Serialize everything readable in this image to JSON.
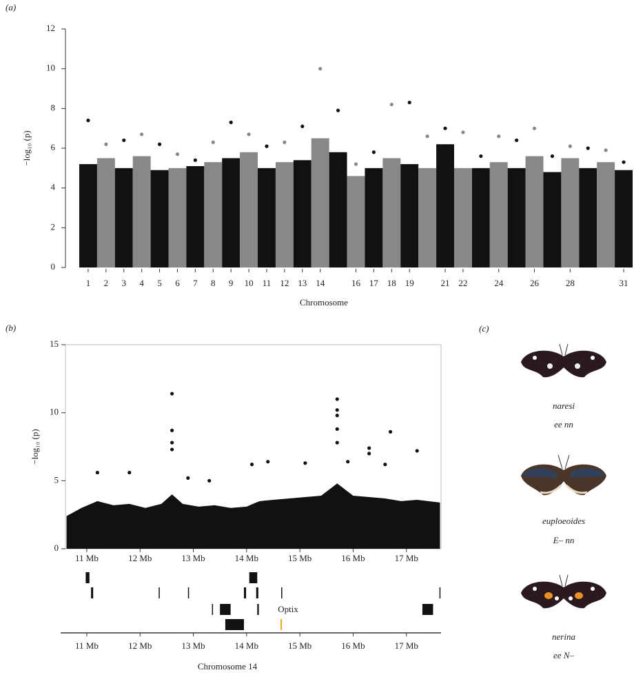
{
  "chart_data": [
    {
      "type": "manhattan",
      "panel": "(a)",
      "x_label": "Chromosome",
      "y_label": "−log₁₀ (p)",
      "categories": [
        "1",
        "2",
        "3",
        "4",
        "5",
        "6",
        "7",
        "8",
        "9",
        "10",
        "11",
        "12",
        "13",
        "14",
        null,
        "16",
        "17",
        "18",
        "19",
        null,
        "21",
        "22",
        null,
        "24",
        null,
        "26",
        null,
        "28",
        null,
        null,
        "31"
      ],
      "values": [
        5.2,
        5.5,
        5.0,
        5.6,
        4.9,
        5.0,
        5.1,
        5.3,
        5.5,
        5.8,
        5.0,
        5.3,
        5.4,
        6.5,
        5.8,
        4.6,
        5.0,
        5.5,
        5.2,
        5.0,
        6.2,
        5.0,
        5.0,
        5.3,
        5.0,
        5.6,
        4.8,
        5.5,
        5.0,
        5.3,
        4.9
      ],
      "max_values": [
        7.4,
        6.2,
        6.4,
        6.7,
        6.2,
        5.7,
        5.4,
        6.3,
        7.3,
        6.7,
        6.1,
        6.3,
        7.1,
        10.0,
        7.9,
        5.2,
        5.8,
        8.2,
        8.3,
        6.6,
        7.0,
        6.8,
        5.6,
        6.6,
        6.4,
        7.0,
        5.6,
        6.1,
        6.0,
        5.9,
        5.3
      ],
      "colors": [
        "#111111",
        "#888888"
      ],
      "ylim": [
        0,
        12
      ],
      "yticks": [
        0,
        2,
        4,
        6,
        8,
        10,
        12
      ]
    },
    {
      "type": "regional",
      "panel": "(b)",
      "x_label": "Chromosome 14",
      "y_label": "−log₁₀ (p)",
      "xlim": [
        10.6,
        17.65
      ],
      "ylim": [
        0,
        15
      ],
      "yticks": [
        0,
        5,
        10,
        15
      ],
      "xticks": [
        {
          "value": 11,
          "label": "11 Mb"
        },
        {
          "value": 12,
          "label": "12 Mb"
        },
        {
          "value": 13,
          "label": "13 Mb"
        },
        {
          "value": 14,
          "label": "14 Mb"
        },
        {
          "value": 15,
          "label": "15 Mb"
        },
        {
          "value": 16,
          "label": "16 Mb"
        },
        {
          "value": 17,
          "label": "17 Mb"
        }
      ],
      "envelope_x": [
        10.62,
        10.9,
        11.2,
        11.5,
        11.8,
        12.1,
        12.4,
        12.6,
        12.8,
        13.1,
        13.4,
        13.7,
        14.0,
        14.18,
        14.25,
        14.5,
        14.8,
        15.1,
        15.4,
        15.7,
        16.0,
        16.3,
        16.6,
        16.9,
        17.2,
        17.63
      ],
      "envelope_y": [
        2.4,
        3.0,
        3.5,
        3.2,
        3.3,
        3.0,
        3.3,
        4.0,
        3.3,
        3.1,
        3.2,
        3.0,
        3.1,
        3.4,
        3.5,
        3.6,
        3.7,
        3.8,
        3.9,
        4.8,
        3.9,
        3.8,
        3.7,
        3.5,
        3.6,
        3.4
      ],
      "peaks_x": [
        12.6,
        12.6,
        12.6,
        12.6,
        15.7,
        15.7,
        15.7,
        15.7,
        15.7,
        16.3,
        16.3,
        16.7,
        17.2,
        11.2,
        11.8,
        14.1,
        14.4,
        15.1,
        15.9,
        16.6,
        13.3,
        12.9
      ],
      "peaks_y": [
        11.4,
        8.7,
        7.8,
        7.3,
        11.0,
        10.2,
        9.8,
        8.8,
        7.8,
        7.4,
        7.0,
        8.6,
        7.2,
        5.6,
        5.6,
        6.2,
        6.4,
        6.3,
        6.4,
        6.2,
        5.0,
        5.2
      ],
      "gene_label": "Optix",
      "gene_color": "#e8a825",
      "gene_tracks": [
        [
          [
            10.98,
            11.05
          ],
          [
            14.05,
            14.2
          ]
        ],
        [
          [
            11.08,
            11.12
          ],
          [
            12.35,
            12.36
          ],
          [
            12.9,
            12.91
          ],
          [
            13.95,
            13.99
          ],
          [
            14.18,
            14.22
          ],
          [
            14.65,
            14.66
          ],
          [
            17.62,
            17.63
          ]
        ],
        [
          [
            13.35,
            13.36
          ],
          [
            13.5,
            13.7
          ],
          [
            14.2,
            14.23
          ],
          [
            17.3,
            17.5
          ]
        ],
        [
          [
            13.6,
            13.95
          ]
        ]
      ],
      "gene_highlight": 14.65
    }
  ],
  "panel_c": {
    "label": "(c)",
    "morphs": [
      {
        "name": "naresi",
        "genotype": "ee nn"
      },
      {
        "name": "euploeoides",
        "genotype": "E– nn"
      },
      {
        "name": "nerina",
        "genotype": "ee N–"
      }
    ]
  }
}
